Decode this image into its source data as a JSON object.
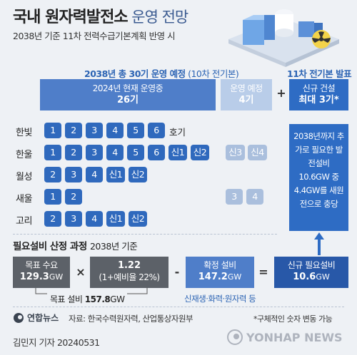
{
  "header": {
    "title_bold": "국내 원자력발전소",
    "title_thin": " 운영 전망",
    "subtitle": "2038년 기준 11차 전력수급기본계획 반영 시"
  },
  "section1": {
    "head_bold": "2038년 총 30기 운영 예정",
    "head_thin": " (10차 전기본)",
    "right_head": "11차 전기본 발표",
    "current_label": "2024년 현재 운영중",
    "current_count": "26기",
    "planned_label": "운영 예정",
    "planned_count": "4기",
    "plus": "+",
    "new_label": "신규 건설",
    "new_count": "최대 3기*",
    "side_note": "2038년까지 추가로 필요한 발전설비 10.6GW 중 4.4GW를 새원전으로 충당"
  },
  "chart_data": {
    "type": "table",
    "columns": [
      "site",
      "operating_units",
      "planned_units"
    ],
    "rows": [
      {
        "site": "한빛",
        "operating": [
          "1",
          "2",
          "3",
          "4",
          "5",
          "6"
        ],
        "suffix": "호기",
        "planned": []
      },
      {
        "site": "한울",
        "operating": [
          "1",
          "2",
          "3",
          "4",
          "5",
          "6",
          "신1",
          "신2"
        ],
        "suffix": "",
        "planned": [
          "신3",
          "신4"
        ]
      },
      {
        "site": "월성",
        "operating": [
          "2",
          "3",
          "4",
          "신1",
          "신2"
        ],
        "suffix": "",
        "planned": []
      },
      {
        "site": "새울",
        "operating": [
          "1",
          "2"
        ],
        "suffix": "",
        "planned": [
          "3",
          "4"
        ]
      },
      {
        "site": "고리",
        "operating": [
          "2",
          "3",
          "4",
          "신1",
          "신2"
        ],
        "suffix": "",
        "planned": []
      }
    ]
  },
  "section2": {
    "head_bold": "필요설비 산정 과정",
    "head_thin": "2038년 기준",
    "target_demand_label": "목표 수요",
    "target_demand_value": "129.3",
    "target_demand_unit": "GW",
    "times": "×",
    "factor_value": "1.22",
    "factor_note": "(1+예비율 22%)",
    "minus": "-",
    "confirmed_label": "확정 설비",
    "confirmed_value": "147.2",
    "confirmed_unit": "GW",
    "equals": "=",
    "new_needed_label": "신규 필요설비",
    "new_needed_value": "10.6",
    "new_needed_unit": "GW",
    "target_capacity_label": "목표 설비 ",
    "target_capacity_value": "157.8",
    "target_capacity_unit": "GW",
    "confirmed_note": "신재생·화력·원자력 등"
  },
  "footer": {
    "logo": "연합뉴스",
    "source": "자료: 한국수력원자력, 산업통상자원부",
    "note": "*구체적인 숫자 변동 가능",
    "byline": "김민지 기자  20240531",
    "watermark": "YONHAP NEWS"
  },
  "colors": {
    "operating": "#2f69bd",
    "planned": "#aabfdd",
    "accent": "#2c64b4",
    "calc_gray": "#5c6168"
  }
}
